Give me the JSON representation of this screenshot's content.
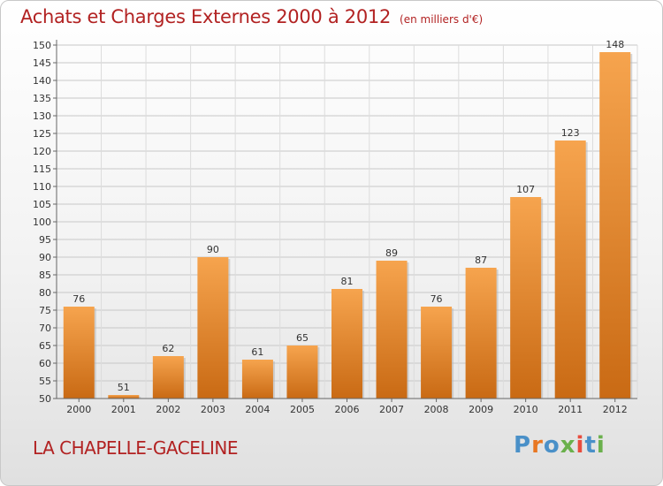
{
  "title": "Achats et Charges Externes 2000 à 2012",
  "unit": "(en milliers d'€)",
  "commune": "LA CHAPELLE-GACELINE",
  "logo": {
    "letters": [
      "P",
      "r",
      "o",
      "x",
      "i",
      "t",
      "i"
    ],
    "colors": [
      "#4a90c8",
      "#e87722",
      "#4a90c8",
      "#6ab04c",
      "#e84c3d",
      "#4a90c8",
      "#6ab04c"
    ]
  },
  "colors": {
    "bar": "#e98a2e",
    "bar_light": "#f6a44e",
    "bar_dark": "#c96a14",
    "title": "#b22222"
  },
  "chart_data": {
    "type": "bar",
    "categories": [
      "2000",
      "2001",
      "2002",
      "2003",
      "2004",
      "2005",
      "2006",
      "2007",
      "2008",
      "2009",
      "2010",
      "2011",
      "2012"
    ],
    "values": [
      76,
      51,
      62,
      90,
      61,
      65,
      81,
      89,
      76,
      87,
      107,
      123,
      148
    ],
    "ylim": [
      50,
      150
    ],
    "yticks": [
      50,
      55,
      60,
      65,
      70,
      75,
      80,
      85,
      90,
      95,
      100,
      105,
      110,
      115,
      120,
      125,
      130,
      135,
      140,
      145,
      150
    ],
    "grid": true
  }
}
